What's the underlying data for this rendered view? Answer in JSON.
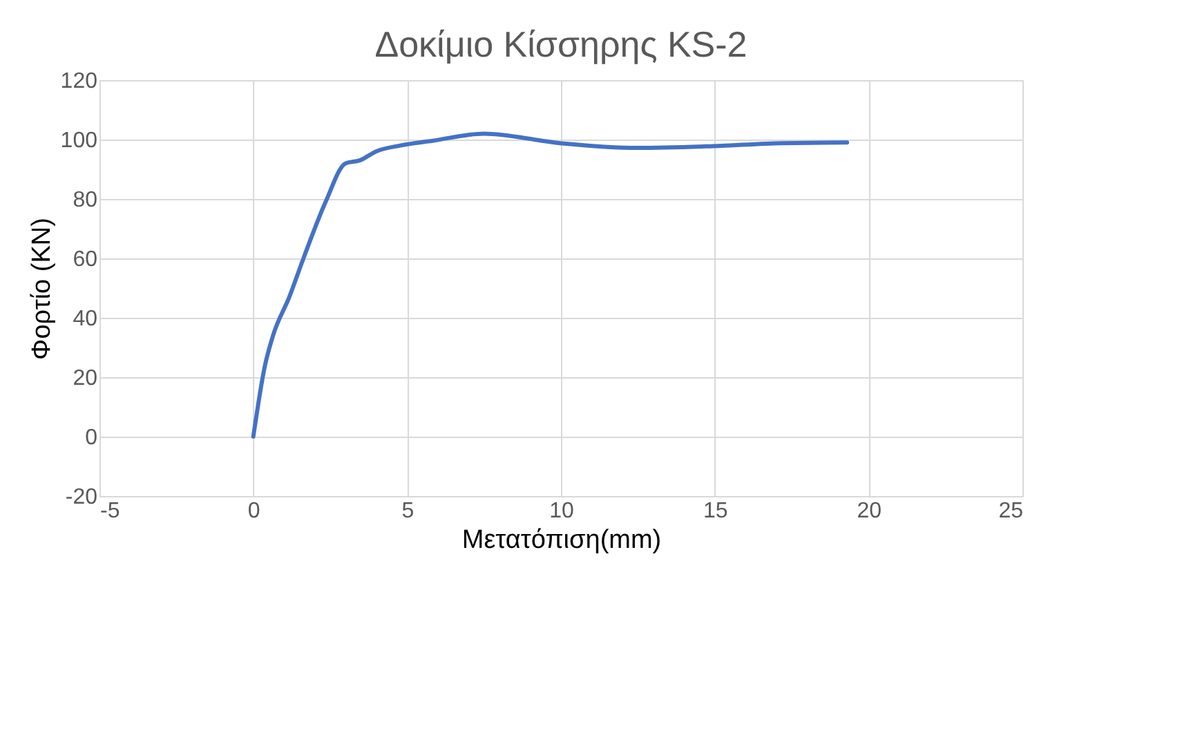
{
  "chart_data": {
    "type": "line",
    "title": "Δοκίμιο Κίσσηρης KS-2",
    "xlabel": "Μετατόπιση(mm)",
    "ylabel": "Φορτίο (KN)",
    "series": [
      {
        "color": "#4472c4",
        "x": [
          0,
          0.38,
          0.64,
          1.17,
          1.63,
          2.35,
          3.0,
          3.46,
          3.99,
          4.78,
          5.83,
          7.5,
          9.96,
          12.5,
          14.95,
          17.2,
          19.3
        ],
        "values": [
          0,
          24,
          34,
          47,
          60,
          79,
          92,
          93,
          96,
          98,
          99.6,
          102,
          98.8,
          97.2,
          97.8,
          98.8,
          99
        ]
      }
    ],
    "xlim": [
      -5,
      25
    ],
    "xticks": [
      -5,
      0,
      5,
      10,
      15,
      20,
      25
    ],
    "ylim": [
      -20,
      120
    ],
    "yticks": [
      -20,
      0,
      20,
      40,
      60,
      80,
      100,
      120
    ],
    "grid": true,
    "marker": "none",
    "line_style": "solid"
  }
}
